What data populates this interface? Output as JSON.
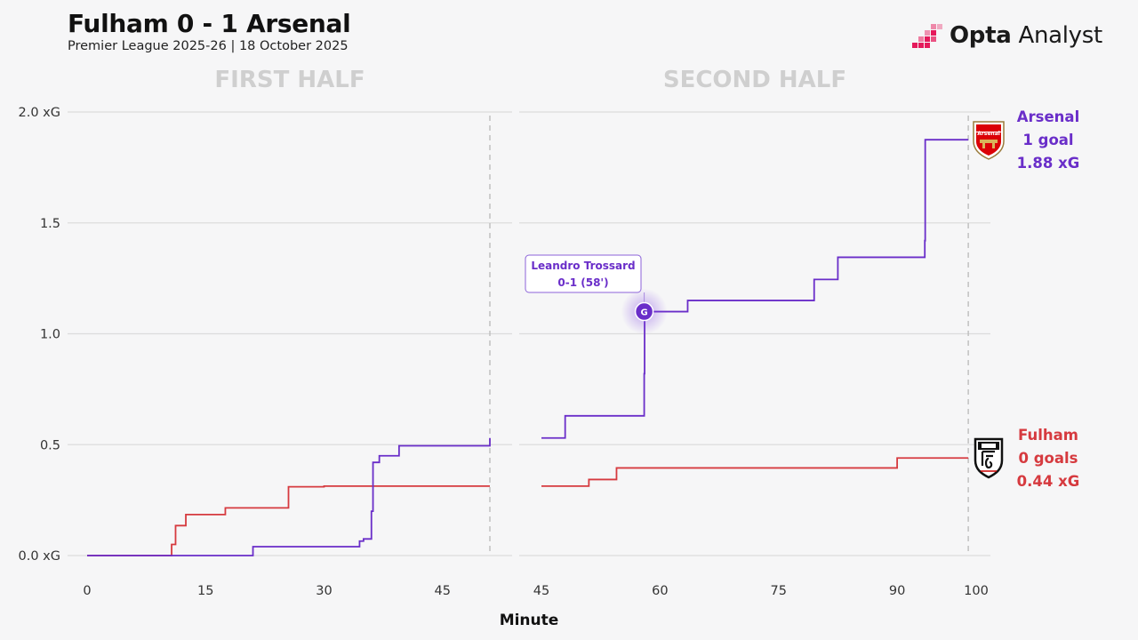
{
  "header": {
    "title": "Fulham 0 - 1 Arsenal",
    "subtitle": "Premier League 2025-26 | 18 October 2025",
    "brand_bold": "Opta",
    "brand_light": " Analyst"
  },
  "chart_data": {
    "type": "line",
    "step": true,
    "title": "Fulham 0 - 1 Arsenal",
    "xlabel": "Minute",
    "ylabel": "xG",
    "ylim": [
      0,
      2.0
    ],
    "yticks": [
      {
        "value": 0,
        "label": "0.0 xG"
      },
      {
        "value": 0.5,
        "label": "0.5"
      },
      {
        "value": 1.0,
        "label": "1.0"
      },
      {
        "value": 1.5,
        "label": "1.5"
      },
      {
        "value": 2.0,
        "label": "2.0 xG"
      }
    ],
    "panels": [
      {
        "label": "FIRST HALF",
        "xlim": [
          0,
          51
        ],
        "xticks": [
          0,
          15,
          30,
          45
        ],
        "end_minute": 51
      },
      {
        "label": "SECOND HALF",
        "xlim": [
          45,
          100
        ],
        "xticks": [
          45,
          60,
          75,
          90,
          100
        ],
        "end_minute": 99
      }
    ],
    "series": [
      {
        "name": "Arsenal",
        "color": "#6a2ec9",
        "goals_label": "1 goal",
        "xg_label": "1.88 xG",
        "first_half": [
          [
            0,
            0
          ],
          [
            10.7,
            0
          ],
          [
            21,
            0.04
          ],
          [
            34.5,
            0.065
          ],
          [
            35,
            0.075
          ],
          [
            36,
            0.2
          ],
          [
            36.2,
            0.42
          ],
          [
            37,
            0.45
          ],
          [
            39.5,
            0.495
          ],
          [
            51,
            0.53
          ]
        ],
        "second_half": [
          [
            45,
            0.53
          ],
          [
            48,
            0.63
          ],
          [
            58,
            0.82
          ],
          [
            58.05,
            1.1
          ],
          [
            63.5,
            1.15
          ],
          [
            79.5,
            1.245
          ],
          [
            82.5,
            1.345
          ],
          [
            93.5,
            1.42
          ],
          [
            93.55,
            1.875
          ],
          [
            99,
            1.875
          ]
        ],
        "goals": [
          {
            "minute": 58,
            "xg": 1.1,
            "marker": "G",
            "player": "Leandro Trossard",
            "score": "0-1 (58')"
          }
        ]
      },
      {
        "name": "Fulham",
        "color": "#d63a3f",
        "goals_label": "0 goals",
        "xg_label": "0.44 xG",
        "first_half": [
          [
            0,
            0
          ],
          [
            10.7,
            0.05
          ],
          [
            11.2,
            0.135
          ],
          [
            12.5,
            0.185
          ],
          [
            17.5,
            0.215
          ],
          [
            25.5,
            0.31
          ],
          [
            30,
            0.313
          ],
          [
            51,
            0.313
          ]
        ],
        "second_half": [
          [
            45,
            0.313
          ],
          [
            51,
            0.343
          ],
          [
            54.5,
            0.395
          ],
          [
            90,
            0.44
          ],
          [
            99,
            0.44
          ]
        ],
        "goals": []
      }
    ]
  },
  "colors": {
    "arsenal": "#6a2ec9",
    "fulham": "#d63a3f",
    "grid": "#dcdcdc",
    "half_label": "#cfcfcf",
    "opta_pink": "#e5195b"
  },
  "icons": {
    "arsenal_crest": "arsenal-crest-icon",
    "fulham_crest": "fulham-crest-icon",
    "brand_mark": "opta-logo-icon"
  },
  "crest_text": {
    "arsenal": "Arsenal"
  }
}
